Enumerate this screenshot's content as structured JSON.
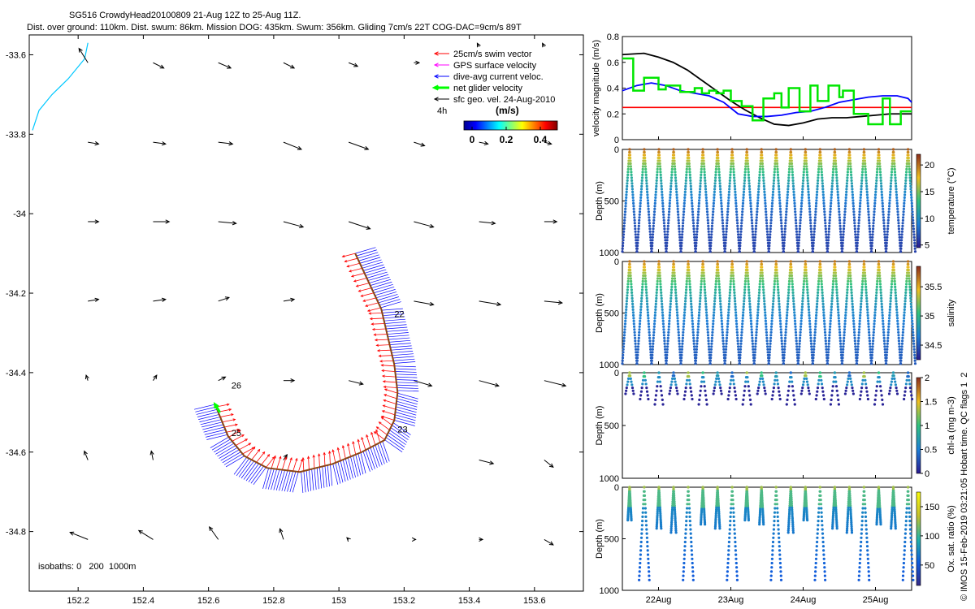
{
  "header": {
    "title_line1": "SG516 CrowdyHead20100809 21-Aug 12Z to 25-Aug 11Z.",
    "title_line2": "Dist. over ground: 110km. Dist. swum: 86km. Mission DOG: 435km. Swum: 356km. Gliding 7cm/s 22T COG-DAC=9cm/s 89T"
  },
  "side_note": "© IMOS 15-Feb-2019 03:21:05 Hobart time. QC flags 1  2",
  "colors": {
    "swim": "#ff0000",
    "gps": "#ff00ff",
    "dac": "#0000ff",
    "glider": "#00ff00",
    "geo": "#000000",
    "coast": "#00c8ff"
  },
  "chart_data": [
    {
      "type": "scatter",
      "name": "map",
      "xlim": [
        152.05,
        153.75
      ],
      "ylim": [
        -34.95,
        -33.55
      ],
      "xticks": [
        "152.2",
        "152.4",
        "152.6",
        "152.8",
        "153",
        "153.2",
        "153.4",
        "153.6"
      ],
      "xtick_values": [
        152.2,
        152.4,
        152.6,
        152.8,
        153.0,
        153.2,
        153.4,
        153.6
      ],
      "yticks": [
        "-33.6",
        "-33.8",
        "-34",
        "-34.2",
        "-34.4",
        "-34.6",
        "-34.8"
      ],
      "ytick_values": [
        -33.6,
        -33.8,
        -34.0,
        -34.2,
        -34.4,
        -34.6,
        -34.8
      ],
      "legend": [
        {
          "label": "25cm/s swim vector",
          "color": "#ff0000"
        },
        {
          "label": "GPS surface velocity",
          "color": "#ff00ff"
        },
        {
          "label": "dive-avg current veloc.",
          "color": "#0000ff"
        },
        {
          "label": "net glider velocity",
          "color": "#00ff00"
        },
        {
          "label": "sfc geo. vel. 24-Aug-2010",
          "color": "#000000"
        }
      ],
      "scale_label": "4h",
      "colorbar": {
        "label": "(m/s)",
        "ticks": [
          "0",
          "0.2",
          "0.4"
        ],
        "range": [
          0,
          0.5
        ]
      },
      "isobaths_label": "isobaths: 0   200  1000m",
      "day_labels": [
        {
          "text": "22",
          "lon": 153.17,
          "lat": -34.26
        },
        {
          "text": "23",
          "lon": 153.18,
          "lat": -34.55
        },
        {
          "text": "25",
          "lon": 152.67,
          "lat": -34.56
        },
        {
          "text": "26",
          "lon": 152.67,
          "lat": -34.44
        }
      ],
      "track": [
        [
          153.05,
          -34.1
        ],
        [
          153.09,
          -34.17
        ],
        [
          153.13,
          -34.24
        ],
        [
          153.15,
          -34.31
        ],
        [
          153.17,
          -34.38
        ],
        [
          153.18,
          -34.45
        ],
        [
          153.17,
          -34.52
        ],
        [
          153.14,
          -34.57
        ],
        [
          153.07,
          -34.6
        ],
        [
          152.98,
          -34.63
        ],
        [
          152.88,
          -34.65
        ],
        [
          152.78,
          -34.64
        ],
        [
          152.71,
          -34.61
        ],
        [
          152.66,
          -34.56
        ],
        [
          152.62,
          -34.48
        ]
      ],
      "coast": [
        [
          152.23,
          -33.57
        ],
        [
          152.22,
          -33.61
        ],
        [
          152.17,
          -33.66
        ],
        [
          152.12,
          -33.7
        ],
        [
          152.08,
          -33.74
        ],
        [
          152.06,
          -33.79
        ]
      ],
      "geo_vectors": [
        {
          "lon": 152.23,
          "lat": -33.62,
          "u": -0.05,
          "v": 0.08
        },
        {
          "lon": 152.43,
          "lat": -33.62,
          "u": 0.06,
          "v": -0.03
        },
        {
          "lon": 152.63,
          "lat": -33.62,
          "u": 0.07,
          "v": -0.03
        },
        {
          "lon": 152.83,
          "lat": -33.62,
          "u": 0.06,
          "v": -0.03
        },
        {
          "lon": 153.03,
          "lat": -33.62,
          "u": 0.05,
          "v": -0.02
        },
        {
          "lon": 153.23,
          "lat": -33.62,
          "u": 0.03,
          "v": 0.0
        },
        {
          "lon": 153.43,
          "lat": -33.58,
          "u": -0.01,
          "v": 0.02
        },
        {
          "lon": 153.63,
          "lat": -33.58,
          "u": -0.01,
          "v": 0.02
        },
        {
          "lon": 152.23,
          "lat": -33.82,
          "u": 0.06,
          "v": -0.01
        },
        {
          "lon": 152.43,
          "lat": -33.82,
          "u": 0.07,
          "v": -0.01
        },
        {
          "lon": 152.63,
          "lat": -33.82,
          "u": 0.08,
          "v": -0.01
        },
        {
          "lon": 152.83,
          "lat": -33.82,
          "u": 0.1,
          "v": -0.04
        },
        {
          "lon": 153.03,
          "lat": -33.82,
          "u": 0.11,
          "v": -0.04
        },
        {
          "lon": 153.23,
          "lat": -33.82,
          "u": 0.06,
          "v": -0.02
        },
        {
          "lon": 153.43,
          "lat": -33.82,
          "u": 0.05,
          "v": -0.01
        },
        {
          "lon": 153.63,
          "lat": -33.82,
          "u": 0.04,
          "v": -0.01
        },
        {
          "lon": 152.23,
          "lat": -34.02,
          "u": 0.06,
          "v": 0.0
        },
        {
          "lon": 152.43,
          "lat": -34.02,
          "u": 0.09,
          "v": 0.0
        },
        {
          "lon": 152.63,
          "lat": -34.02,
          "u": 0.1,
          "v": -0.01
        },
        {
          "lon": 152.83,
          "lat": -34.02,
          "u": 0.11,
          "v": -0.03
        },
        {
          "lon": 153.03,
          "lat": -34.02,
          "u": 0.12,
          "v": -0.04
        },
        {
          "lon": 153.23,
          "lat": -34.02,
          "u": 0.11,
          "v": -0.03
        },
        {
          "lon": 153.43,
          "lat": -34.02,
          "u": 0.09,
          "v": -0.01
        },
        {
          "lon": 153.63,
          "lat": -34.02,
          "u": 0.07,
          "v": 0.0
        },
        {
          "lon": 152.23,
          "lat": -34.22,
          "u": 0.06,
          "v": 0.01
        },
        {
          "lon": 152.43,
          "lat": -34.22,
          "u": 0.07,
          "v": 0.01
        },
        {
          "lon": 152.63,
          "lat": -34.22,
          "u": 0.06,
          "v": 0.02
        },
        {
          "lon": 152.83,
          "lat": -34.22,
          "u": 0.06,
          "v": 0.01
        },
        {
          "lon": 153.23,
          "lat": -34.22,
          "u": 0.11,
          "v": -0.02
        },
        {
          "lon": 153.43,
          "lat": -34.22,
          "u": 0.12,
          "v": -0.02
        },
        {
          "lon": 153.63,
          "lat": -34.22,
          "u": 0.1,
          "v": -0.01
        },
        {
          "lon": 152.23,
          "lat": -34.42,
          "u": -0.01,
          "v": 0.03
        },
        {
          "lon": 152.43,
          "lat": -34.42,
          "u": 0.02,
          "v": 0.03
        },
        {
          "lon": 152.63,
          "lat": -34.42,
          "u": 0.04,
          "v": 0.02
        },
        {
          "lon": 152.83,
          "lat": -34.42,
          "u": 0.06,
          "v": 0.0
        },
        {
          "lon": 153.03,
          "lat": -34.42,
          "u": 0.08,
          "v": -0.02
        },
        {
          "lon": 153.23,
          "lat": -34.42,
          "u": 0.1,
          "v": -0.03
        },
        {
          "lon": 153.43,
          "lat": -34.42,
          "u": 0.11,
          "v": -0.03
        },
        {
          "lon": 153.63,
          "lat": -34.42,
          "u": 0.12,
          "v": -0.03
        },
        {
          "lon": 152.23,
          "lat": -34.62,
          "u": -0.02,
          "v": 0.05
        },
        {
          "lon": 152.43,
          "lat": -34.62,
          "u": -0.01,
          "v": 0.05
        },
        {
          "lon": 152.83,
          "lat": -34.62,
          "u": 0.02,
          "v": 0.03
        },
        {
          "lon": 153.43,
          "lat": -34.62,
          "u": 0.08,
          "v": -0.02
        },
        {
          "lon": 153.63,
          "lat": -34.62,
          "u": 0.05,
          "v": -0.04
        },
        {
          "lon": 152.23,
          "lat": -34.82,
          "u": -0.1,
          "v": 0.04
        },
        {
          "lon": 152.43,
          "lat": -34.82,
          "u": -0.08,
          "v": 0.05
        },
        {
          "lon": 152.63,
          "lat": -34.82,
          "u": -0.05,
          "v": 0.07
        },
        {
          "lon": 152.83,
          "lat": -34.82,
          "u": -0.02,
          "v": 0.06
        },
        {
          "lon": 153.03,
          "lat": -34.82,
          "u": -0.01,
          "v": 0.01
        },
        {
          "lon": 153.23,
          "lat": -34.82,
          "u": 0.01,
          "v": 0.0
        },
        {
          "lon": 153.43,
          "lat": -34.82,
          "u": 0.02,
          "v": 0.0
        },
        {
          "lon": 153.63,
          "lat": -34.82,
          "u": 0.05,
          "v": -0.03
        }
      ]
    },
    {
      "type": "line",
      "name": "velocity",
      "ylabel": "velocity magnitude (m/s)",
      "ylim": [
        0,
        0.8
      ],
      "yticks": [
        "0",
        "0.2",
        "0.4",
        "0.6",
        "0.8"
      ],
      "ytick_values": [
        0,
        0.2,
        0.4,
        0.6,
        0.8
      ],
      "xlim": [
        21.5,
        25.5
      ],
      "threshold": 0.25,
      "series": [
        {
          "name": "sfc geo. velocity",
          "color": "#000000",
          "x": [
            21.5,
            21.8,
            22.0,
            22.2,
            22.4,
            22.6,
            22.8,
            23.0,
            23.2,
            23.4,
            23.6,
            23.8,
            24.0,
            24.2,
            24.4,
            24.6,
            24.8,
            25.0,
            25.2,
            25.4,
            25.5
          ],
          "values": [
            0.66,
            0.67,
            0.64,
            0.6,
            0.54,
            0.46,
            0.38,
            0.3,
            0.23,
            0.17,
            0.12,
            0.11,
            0.13,
            0.16,
            0.17,
            0.17,
            0.18,
            0.19,
            0.2,
            0.2,
            0.2
          ]
        },
        {
          "name": "dive-avg current",
          "color": "#0000ff",
          "x": [
            21.5,
            21.7,
            21.9,
            22.1,
            22.3,
            22.5,
            22.7,
            22.9,
            23.1,
            23.3,
            23.5,
            23.7,
            23.9,
            24.1,
            24.3,
            24.5,
            24.7,
            24.9,
            25.1,
            25.3,
            25.45,
            25.5
          ],
          "values": [
            0.38,
            0.42,
            0.44,
            0.42,
            0.38,
            0.36,
            0.34,
            0.29,
            0.2,
            0.18,
            0.18,
            0.19,
            0.21,
            0.22,
            0.25,
            0.29,
            0.31,
            0.33,
            0.34,
            0.34,
            0.32,
            0.29
          ]
        },
        {
          "name": "net glider velocity",
          "color": "#00e600",
          "x": [
            21.5,
            21.65,
            21.65,
            21.8,
            21.8,
            22.0,
            22.0,
            22.1,
            22.1,
            22.3,
            22.3,
            22.5,
            22.5,
            22.6,
            22.6,
            22.7,
            22.7,
            22.8,
            22.8,
            22.9,
            22.9,
            23.0,
            23.0,
            23.15,
            23.15,
            23.3,
            23.3,
            23.45,
            23.45,
            23.6,
            23.6,
            23.7,
            23.7,
            23.8,
            23.8,
            23.95,
            23.95,
            24.1,
            24.1,
            24.2,
            24.2,
            24.35,
            24.35,
            24.5,
            24.5,
            24.55,
            24.55,
            24.7,
            24.7,
            24.9,
            24.9,
            25.1,
            25.1,
            25.2,
            25.2,
            25.35,
            25.35,
            25.5
          ],
          "values": [
            0.63,
            0.63,
            0.38,
            0.38,
            0.48,
            0.48,
            0.39,
            0.39,
            0.42,
            0.42,
            0.37,
            0.37,
            0.4,
            0.4,
            0.36,
            0.36,
            0.38,
            0.38,
            0.36,
            0.36,
            0.38,
            0.38,
            0.3,
            0.3,
            0.26,
            0.26,
            0.15,
            0.15,
            0.32,
            0.32,
            0.36,
            0.36,
            0.25,
            0.25,
            0.4,
            0.4,
            0.22,
            0.22,
            0.42,
            0.42,
            0.3,
            0.3,
            0.42,
            0.42,
            0.33,
            0.33,
            0.38,
            0.38,
            0.2,
            0.2,
            0.12,
            0.12,
            0.32,
            0.32,
            0.12,
            0.12,
            0.22,
            0.22
          ]
        }
      ]
    },
    {
      "type": "scatter",
      "name": "temperature-section",
      "ylabel": "Depth (m)",
      "cbar_label": "temperature (°C)",
      "ylim": [
        1000,
        0
      ],
      "yticks": [
        "0",
        "500",
        "1000"
      ],
      "ytick_values": [
        0,
        500,
        1000
      ],
      "crange": [
        4.5,
        22
      ],
      "cticks": [
        "5",
        "10",
        "15",
        "20"
      ],
      "ctick_values": [
        5,
        10,
        15,
        20
      ],
      "profile": "full",
      "surface": 20.5,
      "bottom": 5.5
    },
    {
      "type": "scatter",
      "name": "salinity-section",
      "ylabel": "Depth (m)",
      "cbar_label": "salinity",
      "ylim": [
        1000,
        0
      ],
      "yticks": [
        "0",
        "500",
        "1000"
      ],
      "ytick_values": [
        0,
        500,
        1000
      ],
      "crange": [
        34.25,
        35.85
      ],
      "cticks": [
        "34.5",
        "35",
        "35.5"
      ],
      "ctick_values": [
        34.5,
        35.0,
        35.5
      ],
      "profile": "full",
      "surface": 35.65,
      "bottom": 34.45
    },
    {
      "type": "scatter",
      "name": "chlorophyll-section",
      "ylabel": "Depth (m)",
      "cbar_label": "chl-a (mg m-3)",
      "ylim": [
        1000,
        0
      ],
      "yticks": [
        "0",
        "500",
        "1000"
      ],
      "ytick_values": [
        0,
        500,
        1000
      ],
      "crange": [
        0,
        2
      ],
      "cticks": [
        "0",
        "0.5",
        "1",
        "1.5",
        "2"
      ],
      "ctick_values": [
        0,
        0.5,
        1,
        1.5,
        2
      ],
      "profile": "shallow",
      "max_depth": 300
    },
    {
      "type": "scatter",
      "name": "oxygen-section",
      "ylabel": "Depth (m)",
      "cbar_label": "Ox. sat. ratio (%)",
      "ylim": [
        1000,
        0
      ],
      "yticks": [
        "0",
        "500",
        "1000"
      ],
      "ytick_values": [
        0,
        500,
        1000
      ],
      "crange": [
        15,
        175
      ],
      "cticks": [
        "50",
        "100",
        "150"
      ],
      "ctick_values": [
        50,
        100,
        150
      ],
      "profile": "oxygen",
      "xticks": [
        "22Aug",
        "23Aug",
        "24Aug",
        "25Aug"
      ],
      "xtick_values": [
        22,
        23,
        24,
        25
      ],
      "xlim": [
        21.5,
        25.5
      ]
    }
  ]
}
